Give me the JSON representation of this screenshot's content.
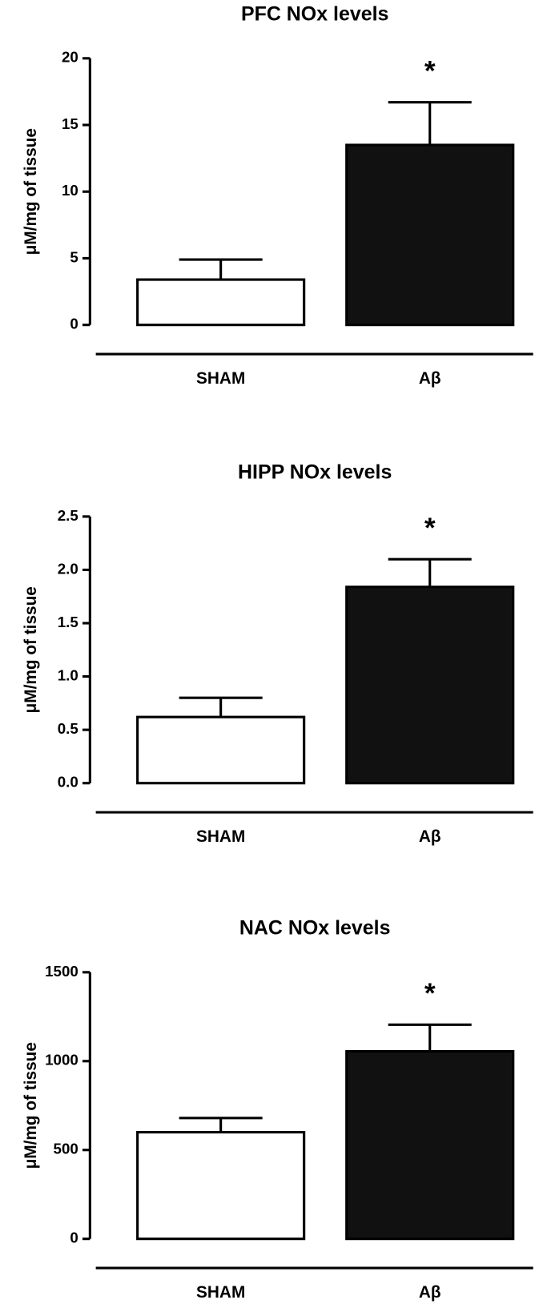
{
  "chart_data": [
    {
      "type": "bar",
      "title": "PFC NOx levels",
      "y_label": "μM/mg of tissue",
      "categories": [
        "SHAM",
        "Aβ"
      ],
      "values": [
        3.4,
        13.5
      ],
      "errors": [
        1.5,
        3.2
      ],
      "colors": [
        "#ffffff",
        "#111111"
      ],
      "ylim": [
        0,
        20
      ],
      "yticks": [
        0,
        5,
        10,
        15,
        20
      ],
      "annotations": [
        {
          "text": "*",
          "category": "Aβ"
        }
      ]
    },
    {
      "type": "bar",
      "title": "HIPP NOx levels",
      "y_label": "μM/mg of tissue",
      "categories": [
        "SHAM",
        "Aβ"
      ],
      "values": [
        0.62,
        1.84
      ],
      "errors": [
        0.18,
        0.26
      ],
      "colors": [
        "#ffffff",
        "#111111"
      ],
      "ylim": [
        0,
        2.5
      ],
      "yticks": [
        {
          "value": 0,
          "label": "0.0"
        },
        0.5,
        {
          "value": 1,
          "label": "1.0"
        },
        1.5,
        {
          "value": 2,
          "label": "2.0"
        },
        2.5
      ],
      "annotations": [
        {
          "text": "*",
          "category": "Aβ"
        }
      ]
    },
    {
      "type": "bar",
      "title": "NAC NOx levels",
      "y_label": "μM/mg of tissue",
      "categories": [
        "SHAM",
        "Aβ"
      ],
      "values": [
        600,
        1055
      ],
      "errors": [
        80,
        150
      ],
      "colors": [
        "#ffffff",
        "#111111"
      ],
      "ylim": [
        0,
        1500
      ],
      "yticks": [
        0,
        500,
        1000,
        1500
      ],
      "annotations": [
        {
          "text": "*",
          "category": "Aβ"
        }
      ]
    }
  ]
}
